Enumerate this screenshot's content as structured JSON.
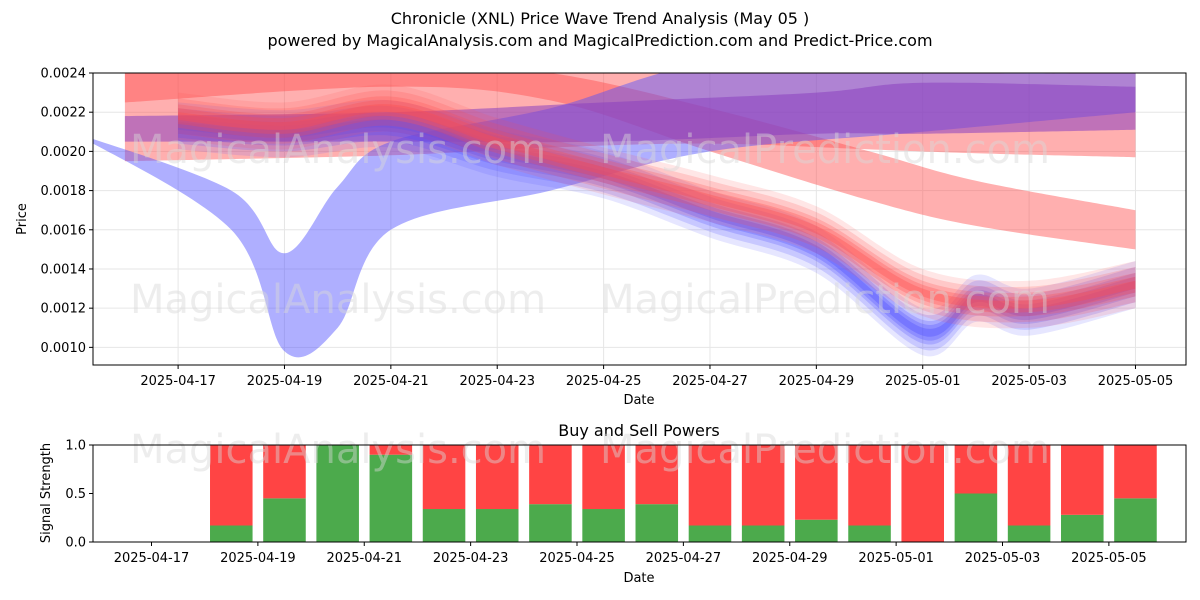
{
  "title": "Chronicle (XNL) Price Wave Trend Analysis (May 05 )",
  "subtitle": "powered by MagicalAnalysis.com and MagicalPrediction.com and Predict-Price.com",
  "watermarks": [
    "MagicalAnalysis.com",
    "MagicalPrediction.com"
  ],
  "colors": {
    "red_band": "#ff4d4d",
    "blue_band": "#4d4dff",
    "purple_band": "#8a3fbf",
    "buy": "#4caa4c",
    "sell": "#ff4444"
  },
  "chart_data": [
    {
      "type": "area",
      "title": "",
      "xlabel": "Date",
      "ylabel": "Price",
      "xlim": [
        "2025-04-15",
        "2025-05-06"
      ],
      "ylim": [
        0.00091,
        0.0024
      ],
      "grid": true,
      "x_ticks": [
        "2025-04-17",
        "2025-04-19",
        "2025-04-21",
        "2025-04-23",
        "2025-04-25",
        "2025-04-27",
        "2025-04-29",
        "2025-05-01",
        "2025-05-03",
        "2025-05-05"
      ],
      "y_ticks": [
        "0.0010",
        "0.0012",
        "0.0014",
        "0.0016",
        "0.0018",
        "0.0020",
        "0.0022",
        "0.0024"
      ],
      "series": [
        {
          "color": "red",
          "x": [
            "2025-04-16",
            "2025-04-21",
            "2025-04-24",
            "2025-04-27",
            "2025-04-30",
            "2025-05-02",
            "2025-05-05"
          ],
          "low": [
            0.00225,
            0.00233,
            0.00226,
            0.002,
            0.00175,
            0.00162,
            0.0015
          ],
          "high": [
            0.0024,
            0.00245,
            0.0024,
            0.00222,
            0.002,
            0.00185,
            0.0017
          ]
        },
        {
          "color": "red",
          "x": [
            "2025-04-16",
            "2025-04-21",
            "2025-04-24",
            "2025-04-27",
            "2025-04-30",
            "2025-05-02",
            "2025-05-05"
          ],
          "low": [
            0.00195,
            0.00198,
            0.00202,
            0.00204,
            0.00201,
            0.00199,
            0.00197
          ],
          "high": [
            0.0024,
            0.00245,
            0.00245,
            0.00245,
            0.00245,
            0.0024,
            0.0024
          ]
        },
        {
          "color": "blue",
          "x": [
            "2025-04-15",
            "2025-04-18",
            "2025-04-19",
            "2025-04-20",
            "2025-04-21",
            "2025-04-24",
            "2025-04-27",
            "2025-05-01",
            "2025-05-05"
          ],
          "low": [
            0.0021,
            0.0016,
            0.00098,
            0.0011,
            0.0016,
            0.0018,
            0.002,
            0.0021,
            0.0022
          ],
          "high": [
            0.0021,
            0.0018,
            0.00148,
            0.00182,
            0.00205,
            0.00222,
            0.00245,
            0.00245,
            0.00245
          ]
        },
        {
          "color": "purple",
          "x": [
            "2025-04-16",
            "2025-04-21",
            "2025-04-25",
            "2025-04-29",
            "2025-05-01",
            "2025-05-05"
          ],
          "low": [
            0.00205,
            0.00205,
            0.00205,
            0.00209,
            0.00209,
            0.00211
          ],
          "high": [
            0.00218,
            0.0022,
            0.00225,
            0.0023,
            0.00235,
            0.00233
          ]
        },
        {
          "color": "blue",
          "x": [
            "2025-04-17",
            "2025-04-19",
            "2025-04-21",
            "2025-04-23",
            "2025-04-25",
            "2025-04-27",
            "2025-04-29",
            "2025-05-01",
            "2025-05-02",
            "2025-05-03",
            "2025-05-05"
          ],
          "center": [
            0.00213,
            0.00209,
            0.00214,
            0.00199,
            0.00188,
            0.00168,
            0.0015,
            0.00108,
            0.00125,
            0.00118,
            0.00132
          ]
        },
        {
          "color": "red",
          "x": [
            "2025-04-17",
            "2025-04-19",
            "2025-04-21",
            "2025-04-23",
            "2025-04-25",
            "2025-04-27",
            "2025-04-29",
            "2025-05-01",
            "2025-05-03",
            "2025-05-05"
          ],
          "center": [
            0.00218,
            0.00213,
            0.00222,
            0.00205,
            0.0019,
            0.00176,
            0.0016,
            0.00128,
            0.00122,
            0.00132
          ]
        }
      ]
    },
    {
      "type": "bar",
      "title": "Buy and Sell Powers",
      "xlabel": "Date",
      "ylabel": "Signal Strength",
      "ylim": [
        0,
        1.0
      ],
      "x_ticks": [
        "2025-04-17",
        "2025-04-19",
        "2025-04-21",
        "2025-04-23",
        "2025-04-25",
        "2025-04-27",
        "2025-04-29",
        "2025-05-01",
        "2025-05-03",
        "2025-05-05"
      ],
      "y_ticks": [
        "0.0",
        "0.5",
        "1.0"
      ],
      "categories": [
        "2025-04-18",
        "2025-04-19",
        "2025-04-20",
        "2025-04-21",
        "2025-04-22",
        "2025-04-23",
        "2025-04-24",
        "2025-04-25",
        "2025-04-26",
        "2025-04-27",
        "2025-04-28",
        "2025-04-29",
        "2025-04-30",
        "2025-05-01",
        "2025-05-02",
        "2025-05-03",
        "2025-05-04",
        "2025-05-05"
      ],
      "series": [
        {
          "name": "buy",
          "values": [
            0.17,
            0.45,
            1.0,
            0.9,
            0.34,
            0.34,
            0.39,
            0.34,
            0.39,
            0.17,
            0.17,
            0.23,
            0.17,
            0.0,
            0.5,
            0.17,
            0.28,
            0.45
          ]
        },
        {
          "name": "sell",
          "values": [
            0.83,
            0.55,
            0.0,
            0.1,
            0.66,
            0.66,
            0.61,
            0.66,
            0.61,
            0.83,
            0.83,
            0.77,
            0.83,
            1.0,
            0.5,
            0.83,
            0.72,
            0.55
          ]
        }
      ]
    }
  ]
}
